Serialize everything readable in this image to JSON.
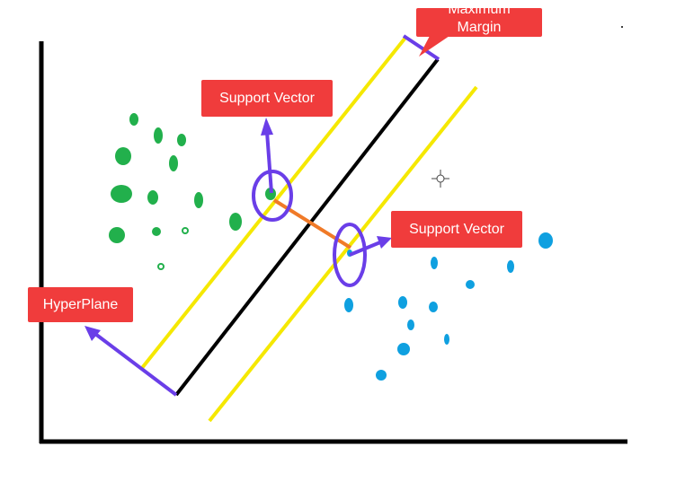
{
  "labels": {
    "support_vector_top": "Support Vector",
    "support_vector_bottom": "Support Vector",
    "hyperplane": "HyperPlane",
    "margin_line1": "Maximum",
    "margin_line2": "Margin"
  },
  "colors": {
    "label_bg": "#f03c3c",
    "label_text": "#ffffff",
    "hyperplane": "#000000",
    "margin_lines": "#f5e800",
    "arrows": "#6a3ee8",
    "margin_distance": "#f07a28",
    "class_a": "#22b04c",
    "class_b": "#0fa0e0",
    "axes": "#000000"
  },
  "icons": [
    "crosshair-icon"
  ]
}
